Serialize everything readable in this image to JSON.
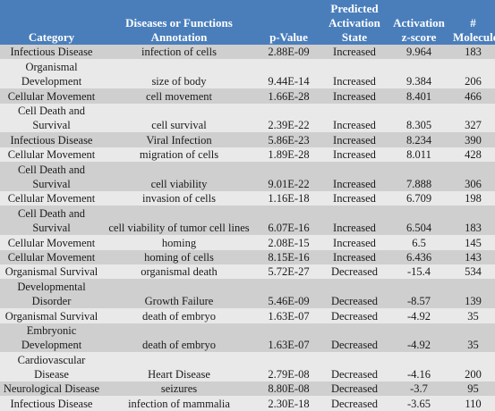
{
  "table": {
    "headers": [
      "Category",
      "Diseases or Functions Annotation",
      "p-Value",
      "Predicted Activation State",
      "Activation z-score",
      "# Molecules"
    ],
    "rows": [
      {
        "category": "Infectious Disease",
        "annotation": "infection of cells",
        "p_value": "2.88E-09",
        "state": "Increased",
        "z_score": "9.964",
        "molecules": "183"
      },
      {
        "category": "Organismal Development",
        "annotation": "size of body",
        "p_value": "9.44E-14",
        "state": "Increased",
        "z_score": "9.384",
        "molecules": "206"
      },
      {
        "category": "Cellular Movement",
        "annotation": "cell movement",
        "p_value": "1.66E-28",
        "state": "Increased",
        "z_score": "8.401",
        "molecules": "466"
      },
      {
        "category": "Cell Death and Survival",
        "annotation": "cell survival",
        "p_value": "2.39E-22",
        "state": "Increased",
        "z_score": "8.305",
        "molecules": "327"
      },
      {
        "category": "Infectious Disease",
        "annotation": "Viral Infection",
        "p_value": "5.86E-23",
        "state": "Increased",
        "z_score": "8.234",
        "molecules": "390"
      },
      {
        "category": "Cellular Movement",
        "annotation": "migration of cells",
        "p_value": "1.89E-28",
        "state": "Increased",
        "z_score": "8.011",
        "molecules": "428"
      },
      {
        "category": "Cell Death and Survival",
        "annotation": "cell viability",
        "p_value": "9.01E-22",
        "state": "Increased",
        "z_score": "7.888",
        "molecules": "306"
      },
      {
        "category": "Cellular Movement",
        "annotation": "invasion of cells",
        "p_value": "1.16E-18",
        "state": "Increased",
        "z_score": "6.709",
        "molecules": "198"
      },
      {
        "category": "Cell Death and Survival",
        "annotation": "cell viability of tumor cell lines",
        "p_value": "6.07E-16",
        "state": "Increased",
        "z_score": "6.504",
        "molecules": "183"
      },
      {
        "category": "Cellular Movement",
        "annotation": "homing",
        "p_value": "2.08E-15",
        "state": "Increased",
        "z_score": "6.5",
        "molecules": "145"
      },
      {
        "category": "Cellular Movement",
        "annotation": "homing of cells",
        "p_value": "8.15E-16",
        "state": "Increased",
        "z_score": "6.436",
        "molecules": "143"
      },
      {
        "category": "Organismal Survival",
        "annotation": "organismal death",
        "p_value": "5.72E-27",
        "state": "Decreased",
        "z_score": "-15.4",
        "molecules": "534"
      },
      {
        "category": "Developmental Disorder",
        "annotation": "Growth Failure",
        "p_value": "5.46E-09",
        "state": "Decreased",
        "z_score": "-8.57",
        "molecules": "139"
      },
      {
        "category": "Organismal Survival",
        "annotation": "death of embryo",
        "p_value": "1.63E-07",
        "state": "Decreased",
        "z_score": "-4.92",
        "molecules": "35"
      },
      {
        "category": "Embryonic Development",
        "annotation": "death of embryo",
        "p_value": "1.63E-07",
        "state": "Decreased",
        "z_score": "-4.92",
        "molecules": "35"
      },
      {
        "category": "Cardiovascular Disease",
        "annotation": "Heart Disease",
        "p_value": "2.79E-08",
        "state": "Decreased",
        "z_score": "-4.16",
        "molecules": "200"
      },
      {
        "category": "Neurological Disease",
        "annotation": "seizures",
        "p_value": "8.80E-08",
        "state": "Decreased",
        "z_score": "-3.7",
        "molecules": "95"
      },
      {
        "category": "Infectious Disease",
        "annotation": "infection of mammalia",
        "p_value": "2.30E-18",
        "state": "Decreased",
        "z_score": "-3.65",
        "molecules": "110"
      }
    ]
  },
  "colors": {
    "header_bg": "#4a7ebb",
    "header_text": "#ffffff",
    "row_odd": "#cfcfcf",
    "row_even": "#e9e9e9"
  }
}
